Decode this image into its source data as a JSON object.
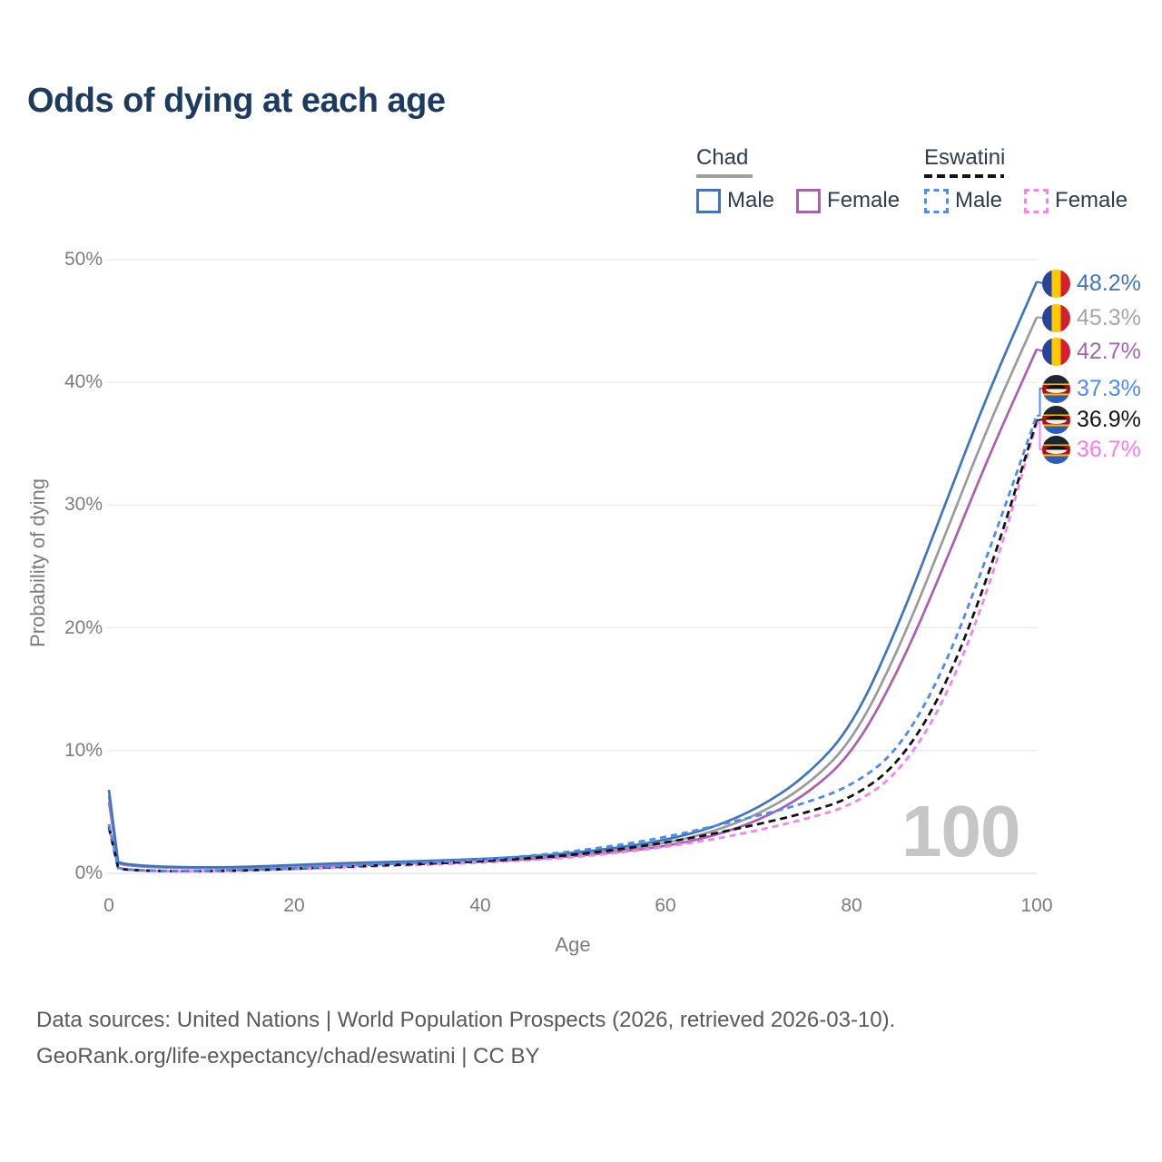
{
  "title": "Odds of dying at each age",
  "legend": {
    "groups": [
      {
        "label": "Chad",
        "line_style": "solid",
        "underline_color": "#9e9e9e",
        "items": [
          {
            "label": "Male",
            "color": "#3e74c2",
            "dashed": false
          },
          {
            "label": "Female",
            "color": "#ab5fb0",
            "dashed": false
          }
        ]
      },
      {
        "label": "Eswatini",
        "line_style": "dashed",
        "underline_color": "#141414",
        "items": [
          {
            "label": "Male",
            "color": "#4b8bf5",
            "dashed": true
          },
          {
            "label": "Female",
            "color": "#f583ef",
            "dashed": true
          }
        ]
      }
    ]
  },
  "y_axis": {
    "title": "Probability of dying",
    "ticks": [
      "50%",
      "40%",
      "30%",
      "20%",
      "10%",
      "0%"
    ]
  },
  "x_axis": {
    "title": "Age",
    "ticks": [
      "0",
      "20",
      "40",
      "60",
      "80",
      "100"
    ]
  },
  "watermark": "100",
  "end_labels": [
    {
      "value": "48.2%",
      "color": "#4076c0",
      "flag": "chad",
      "series": "chad_male"
    },
    {
      "value": "45.3%",
      "color": "#a6a6a6",
      "flag": "chad",
      "series": "chad_all"
    },
    {
      "value": "42.7%",
      "color": "#a864ad",
      "flag": "chad",
      "series": "chad_female"
    },
    {
      "value": "37.3%",
      "color": "#4b8bf5",
      "flag": "eswatini",
      "series": "eswatini_male"
    },
    {
      "value": "36.9%",
      "color": "#141414",
      "flag": "eswatini",
      "series": "eswatini_all"
    },
    {
      "value": "36.7%",
      "color": "#f97af2",
      "flag": "eswatini",
      "series": "eswatini_female"
    }
  ],
  "footer": {
    "line1": "Data sources: United Nations | World Population Prospects (2026, retrieved 2026-03-10).",
    "line2": "GeoRank.org/life-expectancy/chad/eswatini | CC BY"
  },
  "chart_data": {
    "type": "line",
    "title": "Odds of dying at each age",
    "xlabel": "Age",
    "ylabel": "Probability of dying",
    "xlim": [
      0,
      100
    ],
    "ylim_percent": [
      0,
      50
    ],
    "x_ticks": [
      0,
      20,
      40,
      60,
      80,
      100
    ],
    "y_ticks_percent": [
      0,
      10,
      20,
      30,
      40,
      50
    ],
    "grid": "horizontal",
    "legend_position": "top-right",
    "ages": [
      0,
      1,
      2,
      5,
      10,
      15,
      20,
      25,
      30,
      35,
      40,
      45,
      50,
      55,
      60,
      65,
      70,
      75,
      80,
      85,
      90,
      95,
      100
    ],
    "series": [
      {
        "key": "chad_male",
        "name": "Chad Male",
        "color": "#3e74c2",
        "dash": null,
        "end_value_percent": 48.2,
        "values_percent": [
          6.8,
          0.9,
          0.72,
          0.55,
          0.47,
          0.52,
          0.68,
          0.82,
          0.93,
          1.03,
          1.16,
          1.36,
          1.65,
          2.1,
          2.7,
          3.7,
          5.3,
          7.8,
          11.8,
          20.0,
          29.8,
          39.6,
          48.2
        ]
      },
      {
        "key": "chad_all",
        "name": "Chad (both sexes)",
        "color": "#9b9b9b",
        "dash": null,
        "end_value_percent": 45.3,
        "values_percent": [
          6.3,
          0.85,
          0.68,
          0.52,
          0.44,
          0.48,
          0.62,
          0.75,
          0.85,
          0.94,
          1.06,
          1.25,
          1.52,
          1.92,
          2.45,
          3.35,
          4.8,
          7.0,
          10.6,
          18.0,
          27.3,
          36.9,
          45.3
        ]
      },
      {
        "key": "chad_female",
        "name": "Chad Female",
        "color": "#ab5fb0",
        "dash": null,
        "end_value_percent": 42.7,
        "values_percent": [
          5.8,
          0.8,
          0.64,
          0.49,
          0.41,
          0.45,
          0.56,
          0.68,
          0.77,
          0.85,
          0.96,
          1.13,
          1.38,
          1.75,
          2.2,
          3.0,
          4.3,
          6.3,
          9.6,
          16.3,
          25.0,
          34.3,
          42.7
        ]
      },
      {
        "key": "eswatini_male",
        "name": "Eswatini Male",
        "color": "#4b8bf5",
        "dash": [
          7,
          5
        ],
        "end_value_percent": 37.3,
        "values_percent": [
          4.0,
          0.45,
          0.3,
          0.2,
          0.18,
          0.26,
          0.42,
          0.6,
          0.75,
          0.92,
          1.12,
          1.4,
          1.78,
          2.3,
          2.95,
          3.8,
          4.7,
          5.7,
          7.1,
          9.9,
          16.5,
          26.5,
          37.3
        ]
      },
      {
        "key": "eswatini_all",
        "name": "Eswatini (both sexes)",
        "color": "#141414",
        "dash": [
          8,
          5
        ],
        "end_value_percent": 36.9,
        "values_percent": [
          3.8,
          0.42,
          0.28,
          0.19,
          0.17,
          0.24,
          0.38,
          0.53,
          0.67,
          0.8,
          0.97,
          1.2,
          1.5,
          1.95,
          2.5,
          3.2,
          4.0,
          4.9,
          6.1,
          8.8,
          14.8,
          24.6,
          36.9
        ]
      },
      {
        "key": "eswatini_female",
        "name": "Eswatini Female",
        "color": "#f583ef",
        "dash": [
          7,
          5
        ],
        "end_value_percent": 36.7,
        "values_percent": [
          3.6,
          0.4,
          0.26,
          0.18,
          0.16,
          0.22,
          0.34,
          0.47,
          0.6,
          0.72,
          0.86,
          1.05,
          1.3,
          1.68,
          2.15,
          2.75,
          3.5,
          4.4,
          5.5,
          8.0,
          13.8,
          23.4,
          36.7
        ]
      }
    ]
  }
}
